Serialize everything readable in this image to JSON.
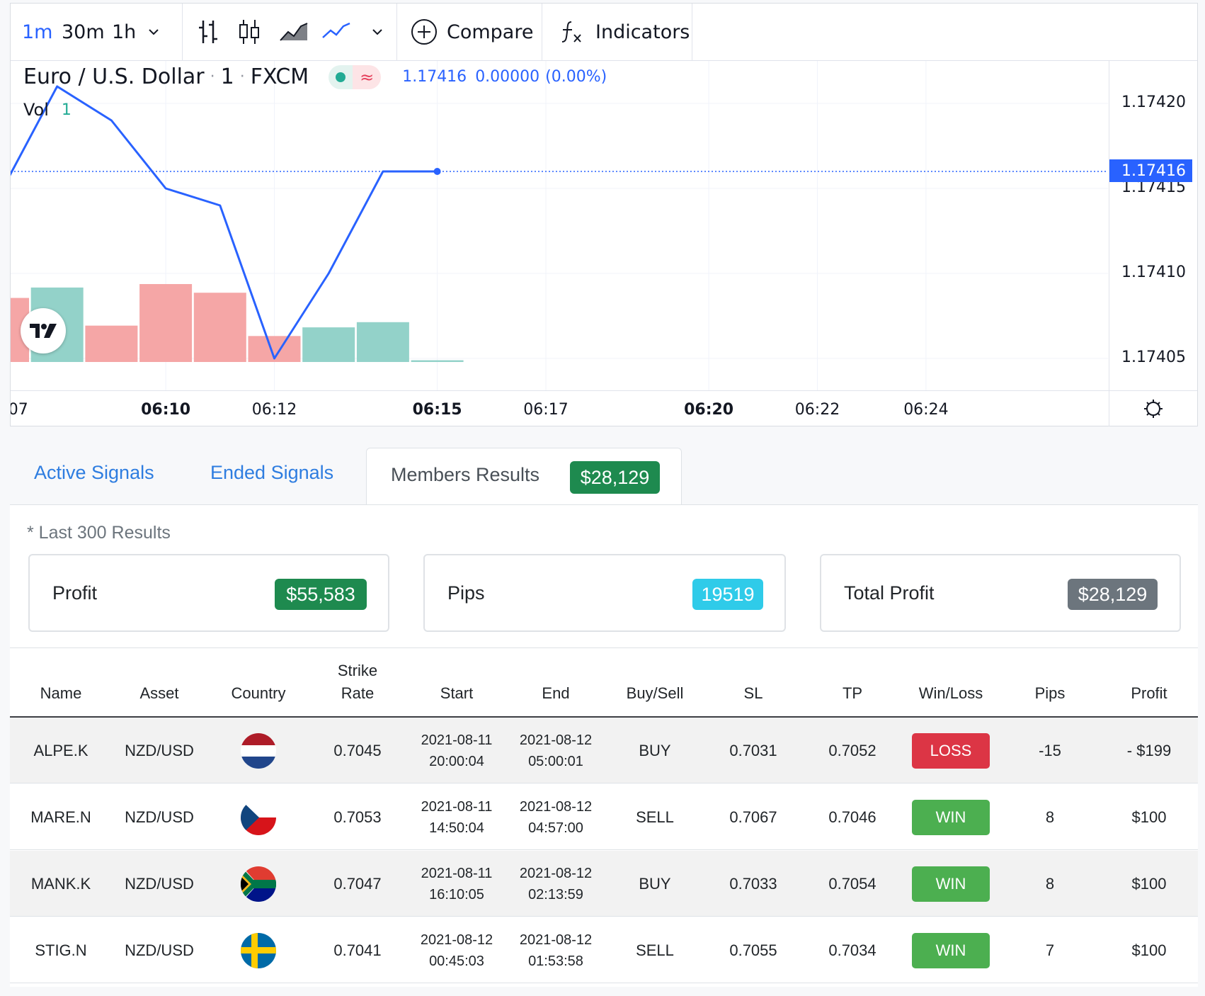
{
  "toolbar": {
    "intervals": [
      "1m",
      "30m",
      "1h"
    ],
    "compare_label": "Compare",
    "indicators_label": "Indicators"
  },
  "chart_legend": {
    "symbol": "Euro / U.S. Dollar",
    "interval": "1",
    "exchange": "FXCM",
    "last": "1.17416",
    "change": "0.00000",
    "change_pct": "(0.00%)",
    "vol_label": "Vol",
    "vol_value": "1"
  },
  "chart_data": {
    "type": "line",
    "symbol": "EURUSD",
    "x": [
      "06:07",
      "06:08",
      "06:09",
      "06:10",
      "06:11",
      "06:12",
      "06:13",
      "06:14",
      "06:15"
    ],
    "close": [
      1.17415,
      1.17421,
      1.17419,
      1.17415,
      1.17414,
      1.17405,
      1.1741,
      1.17416,
      1.17416
    ],
    "volume": [
      {
        "t": "06:07",
        "v": 37,
        "dir": "down"
      },
      {
        "t": "06:08",
        "v": 43,
        "dir": "up"
      },
      {
        "t": "06:09",
        "v": 21,
        "dir": "down"
      },
      {
        "t": "06:10",
        "v": 45,
        "dir": "down"
      },
      {
        "t": "06:11",
        "v": 40,
        "dir": "down"
      },
      {
        "t": "06:12",
        "v": 15,
        "dir": "down"
      },
      {
        "t": "06:13",
        "v": 20,
        "dir": "up"
      },
      {
        "t": "06:14",
        "v": 23,
        "dir": "up"
      },
      {
        "t": "06:15",
        "v": 1,
        "dir": "up"
      }
    ],
    "ylim": [
      1.17403,
      1.17423
    ],
    "price_ticks": [
      "1.17420",
      "1.17415",
      "1.17410",
      "1.17405"
    ],
    "current_price_label": "1.17416",
    "time_ticks": [
      {
        "label": ":07",
        "bold": false
      },
      {
        "label": "06:10",
        "bold": true
      },
      {
        "label": "06:12",
        "bold": false
      },
      {
        "label": "06:15",
        "bold": true
      },
      {
        "label": "06:17",
        "bold": false
      },
      {
        "label": "06:20",
        "bold": true
      },
      {
        "label": "06:22",
        "bold": false
      },
      {
        "label": "06:24",
        "bold": false
      }
    ],
    "line_color": "#2962ff",
    "up_color": "#93d2c9",
    "down_color": "#f5a6a6"
  },
  "tabs": {
    "active_signals": "Active Signals",
    "ended_signals": "Ended Signals",
    "members_results": "Members Results",
    "members_results_badge": "$28,129"
  },
  "summary": {
    "note": "* Last 300 Results",
    "profit_label": "Profit",
    "profit_value": "$55,583",
    "pips_label": "Pips",
    "pips_value": "19519",
    "total_label": "Total Profit",
    "total_value": "$28,129"
  },
  "table": {
    "headers": [
      "Name",
      "Asset",
      "Country",
      "Strike Rate",
      "Start",
      "End",
      "Buy/Sell",
      "SL",
      "TP",
      "Win/Loss",
      "Pips",
      "Profit"
    ],
    "rows": [
      {
        "name": "ALPE.K",
        "asset": "NZD/USD",
        "flag": "netherlands-flag-icon",
        "strike": "0.7045",
        "start_date": "2021-08-11",
        "start_time": "20:00:04",
        "end_date": "2021-08-12",
        "end_time": "05:00:01",
        "side": "BUY",
        "sl": "0.7031",
        "tp": "0.7052",
        "result": "LOSS",
        "pips": "-15",
        "profit": "- $199"
      },
      {
        "name": "MARE.N",
        "asset": "NZD/USD",
        "flag": "czech-flag-icon",
        "strike": "0.7053",
        "start_date": "2021-08-11",
        "start_time": "14:50:04",
        "end_date": "2021-08-12",
        "end_time": "04:57:00",
        "side": "SELL",
        "sl": "0.7067",
        "tp": "0.7046",
        "result": "WIN",
        "pips": "8",
        "profit": "$100"
      },
      {
        "name": "MANK.K",
        "asset": "NZD/USD",
        "flag": "south-africa-flag-icon",
        "strike": "0.7047",
        "start_date": "2021-08-11",
        "start_time": "16:10:05",
        "end_date": "2021-08-12",
        "end_time": "02:13:59",
        "side": "BUY",
        "sl": "0.7033",
        "tp": "0.7054",
        "result": "WIN",
        "pips": "8",
        "profit": "$100"
      },
      {
        "name": "STIG.N",
        "asset": "NZD/USD",
        "flag": "sweden-flag-icon",
        "strike": "0.7041",
        "start_date": "2021-08-12",
        "start_time": "00:45:03",
        "end_date": "2021-08-12",
        "end_time": "01:53:58",
        "side": "SELL",
        "sl": "0.7055",
        "tp": "0.7034",
        "result": "WIN",
        "pips": "7",
        "profit": "$100"
      }
    ]
  },
  "colors": {
    "accent_blue": "#2e7de0",
    "success": "#1e8a4f",
    "info": "#2fcbe9",
    "secondary": "#6c757d",
    "danger": "#dc3545",
    "win": "#4caf50"
  }
}
